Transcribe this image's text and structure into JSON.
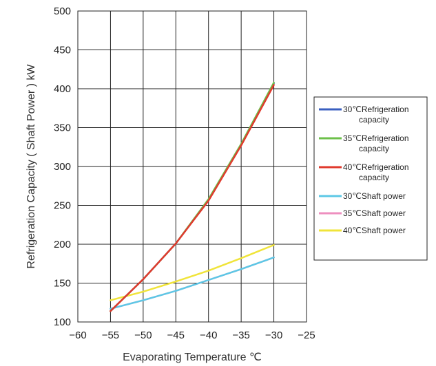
{
  "chart_data": {
    "type": "line",
    "xlabel": "Evaporating Temperature ℃",
    "ylabel": "Refrigeration Capacity ( Shaft Power ) kW",
    "xlim": [
      -60,
      -25
    ],
    "ylim": [
      100,
      500
    ],
    "x_ticks": [
      -60,
      -55,
      -50,
      -45,
      -40,
      -35,
      -30,
      -25
    ],
    "y_ticks": [
      100,
      150,
      200,
      250,
      300,
      350,
      400,
      450,
      500
    ],
    "x_tick_labels": [
      "−60",
      "−55",
      "−50",
      "−45",
      "−40",
      "−35",
      "−30",
      "−25"
    ],
    "y_tick_labels": [
      "100",
      "150",
      "200",
      "250",
      "300",
      "350",
      "400",
      "450",
      "500"
    ],
    "grid": true,
    "legend_position": "right",
    "series": [
      {
        "name": "30℃Refrigeration capacity",
        "legend_lines": [
          "30℃Refrigeration",
          "capacity"
        ],
        "color": "#3a5fc0",
        "x": [
          -55,
          -50,
          -45,
          -40,
          -35,
          -30
        ],
        "y": [
          114,
          155,
          201,
          257,
          328,
          407
        ]
      },
      {
        "name": "35℃Refrigeration capacity",
        "legend_lines": [
          "35℃Refrigeration",
          "capacity"
        ],
        "color": "#6cc04a",
        "x": [
          -55,
          -50,
          -45,
          -40,
          -35,
          -30
        ],
        "y": [
          114,
          155,
          201,
          258,
          329,
          408
        ]
      },
      {
        "name": "40℃Refrigeration capacity",
        "legend_lines": [
          "40℃Refrigeration",
          "capacity"
        ],
        "color": "#e03a2e",
        "x": [
          -55,
          -50,
          -45,
          -40,
          -35,
          -30
        ],
        "y": [
          114,
          155,
          201,
          256,
          327,
          405
        ]
      },
      {
        "name": "30℃Shaft power",
        "legend_lines": [
          "30℃Shaft power"
        ],
        "color": "#5cc8e6",
        "x": [
          -55,
          -50,
          -45,
          -40,
          -35,
          -30
        ],
        "y": [
          117,
          128,
          140,
          154,
          168,
          183
        ]
      },
      {
        "name": "35℃Shaft power",
        "legend_lines": [
          "35℃Shaft power"
        ],
        "color": "#ee8fbf",
        "x": [
          -55,
          -50,
          -45,
          -40,
          -35,
          -30
        ],
        "y": [
          117,
          128,
          140,
          154,
          168,
          183
        ]
      },
      {
        "name": "40℃Shaft power",
        "legend_lines": [
          "40℃Shaft power"
        ],
        "color": "#f0e43a",
        "x": [
          -55,
          -50,
          -45,
          -40,
          -35,
          -30
        ],
        "y": [
          128,
          139,
          152,
          166,
          182,
          199
        ]
      }
    ]
  }
}
